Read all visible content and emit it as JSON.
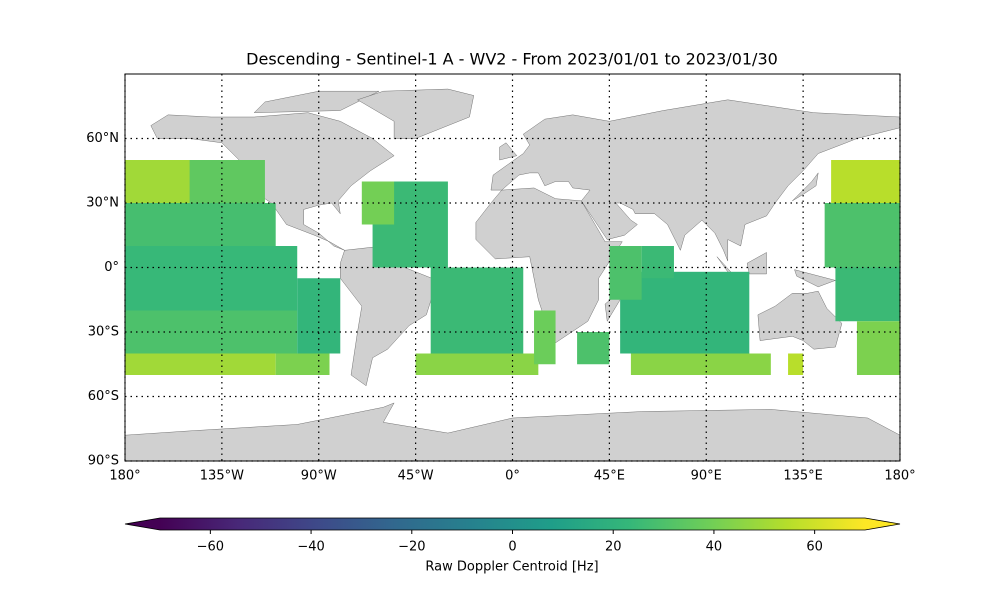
{
  "chart_data": {
    "type": "map",
    "title": "Descending - Sentinel-1 A - WV2 - From 2023/01/01 to 2023/01/30",
    "xlim": [
      -180,
      180
    ],
    "ylim": [
      -90,
      90
    ],
    "xticks": [
      {
        "value": -180,
        "label": "180°"
      },
      {
        "value": -135,
        "label": "135°W"
      },
      {
        "value": -90,
        "label": "90°W"
      },
      {
        "value": -45,
        "label": "45°W"
      },
      {
        "value": 0,
        "label": "0°"
      },
      {
        "value": 45,
        "label": "45°E"
      },
      {
        "value": 90,
        "label": "90°E"
      },
      {
        "value": 135,
        "label": "135°E"
      },
      {
        "value": 180,
        "label": "180°"
      }
    ],
    "yticks": [
      {
        "value": 60,
        "label": "60°N"
      },
      {
        "value": 30,
        "label": "30°N"
      },
      {
        "value": 0,
        "label": "0°"
      },
      {
        "value": -30,
        "label": "30°S"
      },
      {
        "value": -60,
        "label": "60°S"
      },
      {
        "value": -90,
        "label": "90°S"
      }
    ],
    "grid": true,
    "land_color": "#d0d0d0",
    "swaths": [
      {
        "lon": [
          -180,
          -135
        ],
        "lat": [
          30,
          50
        ],
        "value": 50
      },
      {
        "lon": [
          -150,
          -115
        ],
        "lat": [
          30,
          50
        ],
        "value": 35
      },
      {
        "lon": [
          -180,
          -110
        ],
        "lat": [
          10,
          30
        ],
        "value": 28
      },
      {
        "lon": [
          -180,
          -100
        ],
        "lat": [
          -20,
          10
        ],
        "value": 24
      },
      {
        "lon": [
          -180,
          -100
        ],
        "lat": [
          -40,
          -20
        ],
        "value": 30
      },
      {
        "lon": [
          -180,
          -110
        ],
        "lat": [
          -50,
          -40
        ],
        "value": 50
      },
      {
        "lon": [
          -100,
          -80
        ],
        "lat": [
          -40,
          -5
        ],
        "value": 22
      },
      {
        "lon": [
          -110,
          -85
        ],
        "lat": [
          -50,
          -40
        ],
        "value": 42
      },
      {
        "lon": [
          -65,
          -30
        ],
        "lat": [
          0,
          40
        ],
        "value": 25
      },
      {
        "lon": [
          -70,
          -55
        ],
        "lat": [
          20,
          40
        ],
        "value": 40
      },
      {
        "lon": [
          -38,
          5
        ],
        "lat": [
          -40,
          0
        ],
        "value": 25
      },
      {
        "lon": [
          -45,
          12
        ],
        "lat": [
          -50,
          -40
        ],
        "value": 45
      },
      {
        "lon": [
          10,
          20
        ],
        "lat": [
          -45,
          -20
        ],
        "value": 38
      },
      {
        "lon": [
          30,
          45
        ],
        "lat": [
          -45,
          -30
        ],
        "value": 30
      },
      {
        "lon": [
          50,
          110
        ],
        "lat": [
          -40,
          -2
        ],
        "value": 22
      },
      {
        "lon": [
          45,
          60
        ],
        "lat": [
          -15,
          10
        ],
        "value": 30
      },
      {
        "lon": [
          60,
          75
        ],
        "lat": [
          -5,
          10
        ],
        "value": 25
      },
      {
        "lon": [
          55,
          120
        ],
        "lat": [
          -50,
          -40
        ],
        "value": 45
      },
      {
        "lon": [
          128,
          135
        ],
        "lat": [
          -50,
          -40
        ],
        "value": 55
      },
      {
        "lon": [
          148,
          180
        ],
        "lat": [
          30,
          50
        ],
        "value": 55
      },
      {
        "lon": [
          145,
          180
        ],
        "lat": [
          0,
          30
        ],
        "value": 30
      },
      {
        "lon": [
          150,
          180
        ],
        "lat": [
          -25,
          0
        ],
        "value": 25
      },
      {
        "lon": [
          160,
          180
        ],
        "lat": [
          -50,
          -25
        ],
        "value": 42
      }
    ],
    "colorbar": {
      "label": "Raw Doppler Centroid [Hz]",
      "lim": [
        -70,
        70
      ],
      "ticks": [
        {
          "value": -60,
          "label": "−60"
        },
        {
          "value": -40,
          "label": "−40"
        },
        {
          "value": -20,
          "label": "−20"
        },
        0,
        20,
        40,
        60
      ],
      "colors": [
        "#440154",
        "#482878",
        "#3e4989",
        "#31688e",
        "#26828e",
        "#1f9e89",
        "#35b779",
        "#6ece58",
        "#b5de2b",
        "#fde725"
      ]
    }
  }
}
